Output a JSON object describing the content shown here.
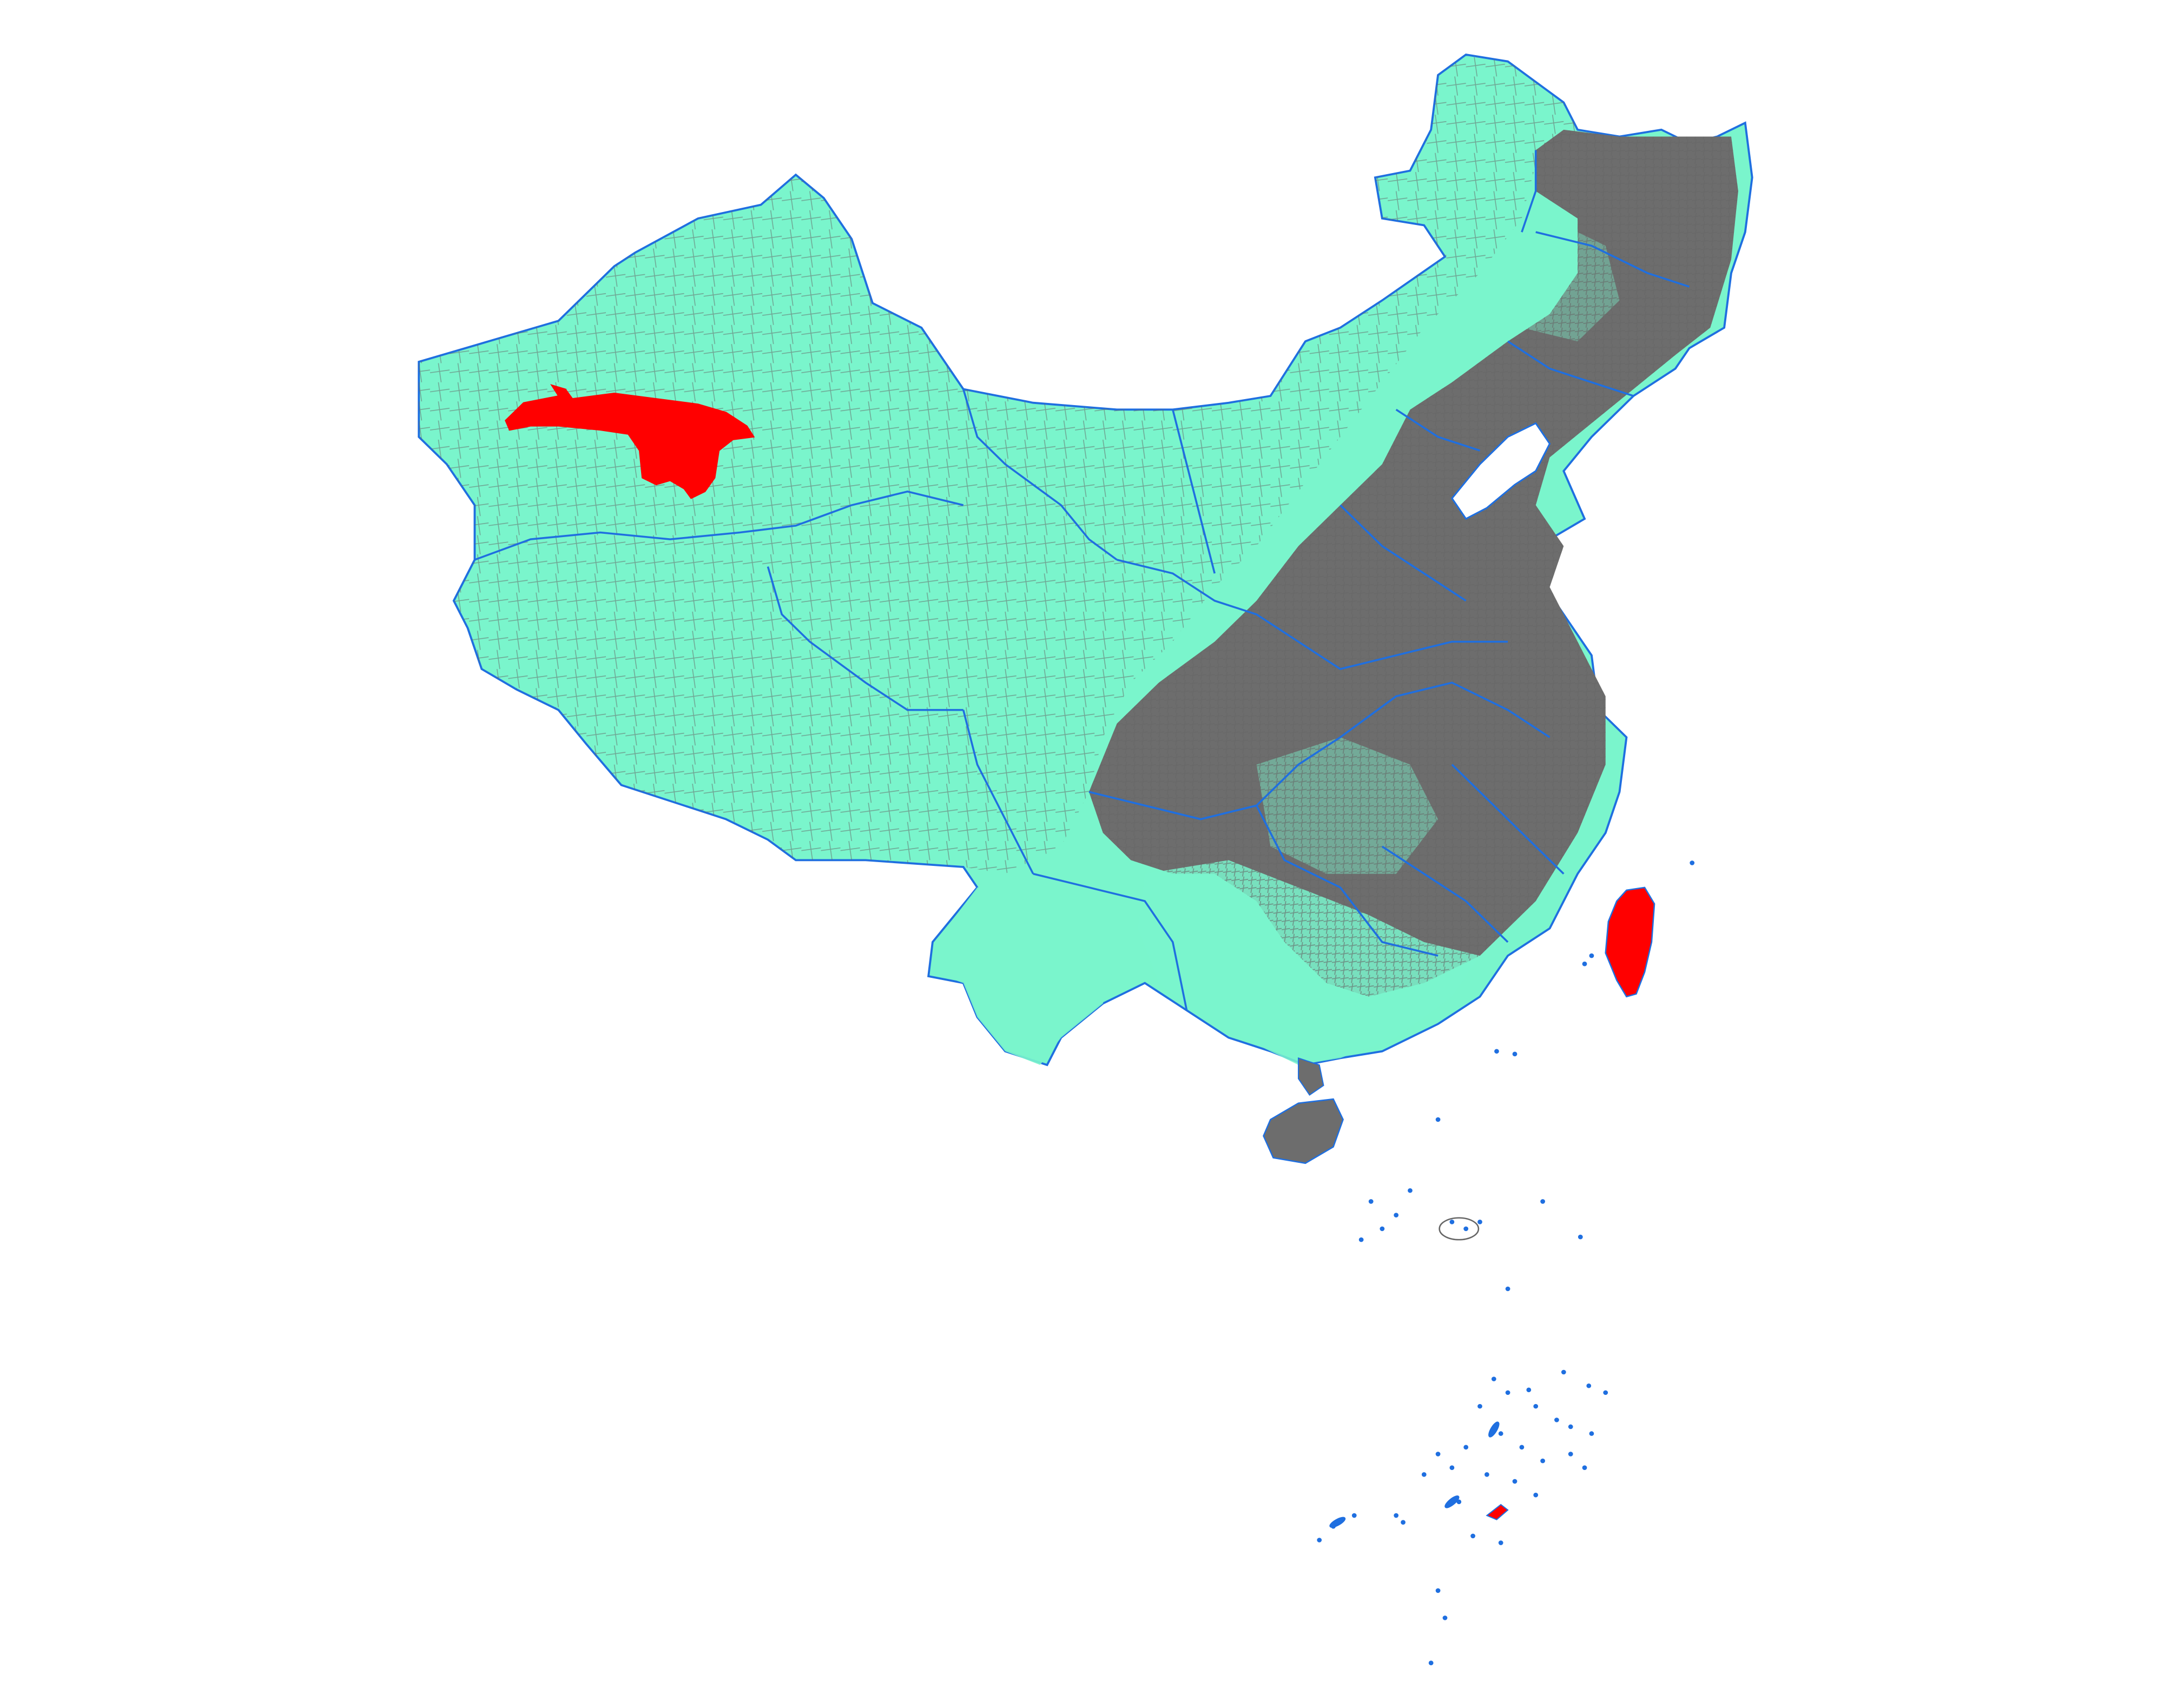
{
  "map": {
    "colors": {
      "background": "#ffffff",
      "land_fill": "#7af5cc",
      "county_border": "#666666",
      "province_border": "#1f6fe0",
      "highlight": "#ff0000",
      "dense_area": "#6d6d6d"
    },
    "layers": [
      "county-boundaries",
      "province-boundaries",
      "highlighted-regions"
    ],
    "highlighted_regions": [
      "xinjiang-central-region",
      "taiwan-island",
      "south-sea-islet"
    ]
  }
}
